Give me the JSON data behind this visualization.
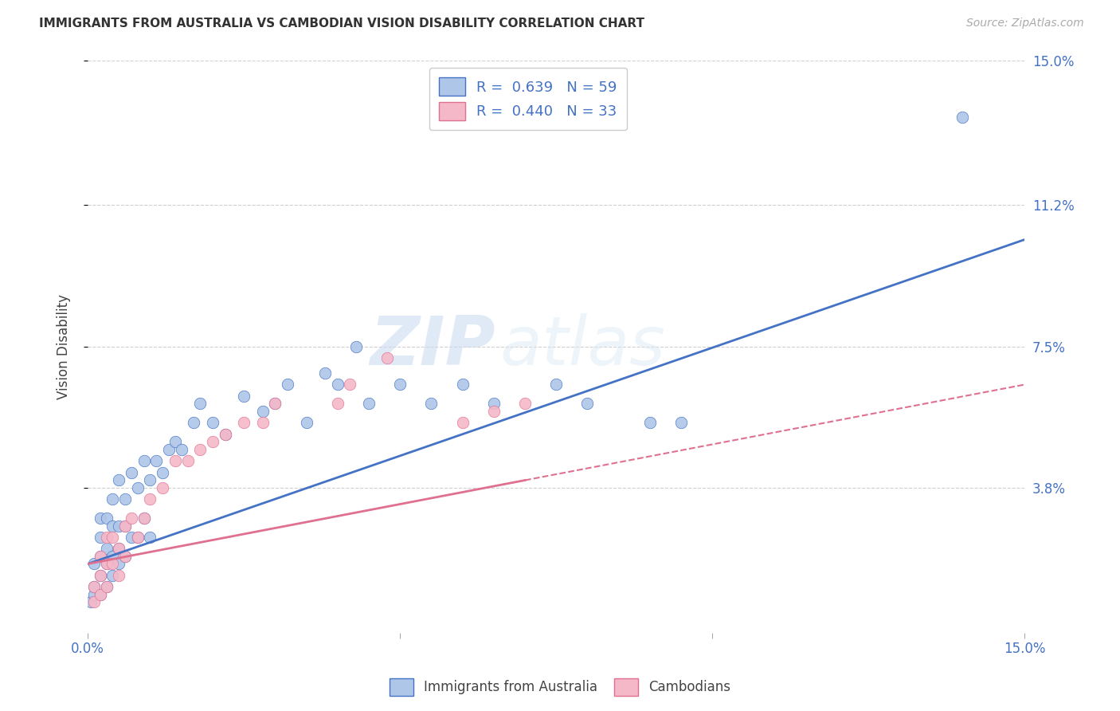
{
  "title": "IMMIGRANTS FROM AUSTRALIA VS CAMBODIAN VISION DISABILITY CORRELATION CHART",
  "source": "Source: ZipAtlas.com",
  "ylabel": "Vision Disability",
  "xlim": [
    0.0,
    0.15
  ],
  "ylim": [
    0.0,
    0.15
  ],
  "ytick_labels": [
    "3.8%",
    "7.5%",
    "11.2%",
    "15.0%"
  ],
  "ytick_vals": [
    0.038,
    0.075,
    0.112,
    0.15
  ],
  "xtick_positions": [
    0.0,
    0.05,
    0.1,
    0.15
  ],
  "grid_color": "#d0d0d0",
  "background_color": "#ffffff",
  "blue_color": "#aec6e8",
  "blue_line_color": "#4472c4",
  "pink_color": "#f5b8c8",
  "pink_line_color": "#e07090",
  "blue_R": "0.639",
  "blue_N": "59",
  "pink_R": "0.440",
  "pink_N": "33",
  "watermark_zip": "ZIP",
  "watermark_atlas": "atlas",
  "aus_x": [
    0.0005,
    0.001,
    0.001,
    0.001,
    0.002,
    0.002,
    0.002,
    0.002,
    0.002,
    0.003,
    0.003,
    0.003,
    0.003,
    0.004,
    0.004,
    0.004,
    0.004,
    0.005,
    0.005,
    0.005,
    0.005,
    0.006,
    0.006,
    0.006,
    0.007,
    0.007,
    0.008,
    0.008,
    0.009,
    0.009,
    0.01,
    0.01,
    0.011,
    0.012,
    0.013,
    0.014,
    0.015,
    0.017,
    0.018,
    0.02,
    0.022,
    0.025,
    0.028,
    0.03,
    0.032,
    0.035,
    0.038,
    0.04,
    0.043,
    0.045,
    0.05,
    0.055,
    0.06,
    0.065,
    0.075,
    0.08,
    0.09,
    0.095,
    0.14
  ],
  "aus_y": [
    0.008,
    0.01,
    0.012,
    0.018,
    0.01,
    0.015,
    0.02,
    0.025,
    0.03,
    0.012,
    0.018,
    0.022,
    0.03,
    0.015,
    0.02,
    0.028,
    0.035,
    0.018,
    0.022,
    0.028,
    0.04,
    0.02,
    0.028,
    0.035,
    0.025,
    0.042,
    0.025,
    0.038,
    0.03,
    0.045,
    0.025,
    0.04,
    0.045,
    0.042,
    0.048,
    0.05,
    0.048,
    0.055,
    0.06,
    0.055,
    0.052,
    0.062,
    0.058,
    0.06,
    0.065,
    0.055,
    0.068,
    0.065,
    0.075,
    0.06,
    0.065,
    0.06,
    0.065,
    0.06,
    0.065,
    0.06,
    0.055,
    0.055,
    0.135
  ],
  "cam_x": [
    0.001,
    0.001,
    0.002,
    0.002,
    0.002,
    0.003,
    0.003,
    0.003,
    0.004,
    0.004,
    0.005,
    0.005,
    0.006,
    0.006,
    0.007,
    0.008,
    0.009,
    0.01,
    0.012,
    0.014,
    0.016,
    0.018,
    0.02,
    0.022,
    0.025,
    0.028,
    0.03,
    0.04,
    0.042,
    0.048,
    0.06,
    0.065,
    0.07
  ],
  "cam_y": [
    0.008,
    0.012,
    0.01,
    0.015,
    0.02,
    0.012,
    0.018,
    0.025,
    0.018,
    0.025,
    0.015,
    0.022,
    0.02,
    0.028,
    0.03,
    0.025,
    0.03,
    0.035,
    0.038,
    0.045,
    0.045,
    0.048,
    0.05,
    0.052,
    0.055,
    0.055,
    0.06,
    0.06,
    0.065,
    0.072,
    0.055,
    0.058,
    0.06
  ],
  "blue_line_x": [
    0.0,
    0.15
  ],
  "blue_line_y": [
    0.018,
    0.103
  ],
  "pink_line_x": [
    0.0,
    0.15
  ],
  "pink_line_y": [
    0.018,
    0.065
  ]
}
